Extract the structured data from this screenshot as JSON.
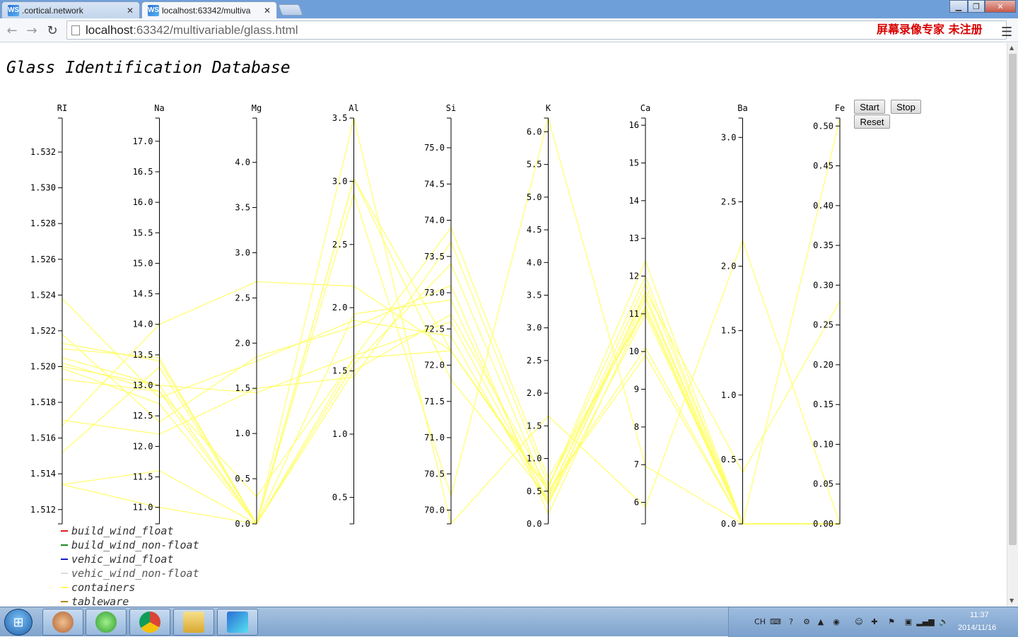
{
  "browser": {
    "tabs": [
      {
        "title": ".cortical.network",
        "active": false,
        "icon": "webstorm-icon"
      },
      {
        "title": "localhost:63342/multiva",
        "active": true,
        "icon": "webstorm-icon"
      }
    ],
    "url_host": "localhost",
    "url_rest": ":63342/multivariable/glass.html",
    "watermark": "屏幕录像专家 未注册"
  },
  "page": {
    "title": "Glass Identification Database",
    "buttons": {
      "start": "Start",
      "stop": "Stop",
      "reset": "Reset"
    },
    "legend": [
      {
        "label": "build_wind_float",
        "color": "#e41a1c"
      },
      {
        "label": "build_wind_non-float",
        "color": "#1a8a1a"
      },
      {
        "label": "vehic_wind_float",
        "color": "#1a1acc"
      },
      {
        "label": "vehic_wind_non-float",
        "color": "#dddddd"
      },
      {
        "label": "containers",
        "color": "#ffff55"
      },
      {
        "label": "tableware",
        "color": "#b8860b"
      }
    ]
  },
  "chart_data": {
    "type": "parallel-coordinates",
    "line_color": "#ffff66",
    "axes": [
      {
        "name": "RI",
        "min": 1.5112,
        "max": 1.5339,
        "ticks": [
          "1.512",
          "1.514",
          "1.516",
          "1.518",
          "1.520",
          "1.522",
          "1.524",
          "1.526",
          "1.528",
          "1.530",
          "1.532"
        ],
        "tick_values": [
          1.512,
          1.514,
          1.516,
          1.518,
          1.52,
          1.522,
          1.524,
          1.526,
          1.528,
          1.53,
          1.532
        ]
      },
      {
        "name": "Na",
        "min": 10.73,
        "max": 17.38,
        "ticks": [
          "11.0",
          "11.5",
          "12.0",
          "12.5",
          "13.0",
          "13.5",
          "14.0",
          "14.5",
          "15.0",
          "15.5",
          "16.0",
          "16.5",
          "17.0"
        ],
        "tick_values": [
          11.0,
          11.5,
          12.0,
          12.5,
          13.0,
          13.5,
          14.0,
          14.5,
          15.0,
          15.5,
          16.0,
          16.5,
          17.0
        ]
      },
      {
        "name": "Mg",
        "min": 0,
        "max": 4.49,
        "ticks": [
          "0.0",
          "0.5",
          "1.0",
          "1.5",
          "2.0",
          "2.5",
          "3.0",
          "3.5",
          "4.0"
        ],
        "tick_values": [
          0,
          0.5,
          1.0,
          1.5,
          2.0,
          2.5,
          3.0,
          3.5,
          4.0
        ]
      },
      {
        "name": "Al",
        "min": 0.29,
        "max": 3.5,
        "ticks": [
          "0.5",
          "1.0",
          "1.5",
          "2.0",
          "2.5",
          "3.0",
          "3.5"
        ],
        "tick_values": [
          0.5,
          1.0,
          1.5,
          2.0,
          2.5,
          3.0,
          3.5
        ]
      },
      {
        "name": "Si",
        "min": 69.81,
        "max": 75.41,
        "ticks": [
          "70.0",
          "70.5",
          "71.0",
          "71.5",
          "72.0",
          "72.5",
          "73.0",
          "73.5",
          "74.0",
          "74.5",
          "75.0"
        ],
        "tick_values": [
          70.0,
          70.5,
          71.0,
          71.5,
          72.0,
          72.5,
          73.0,
          73.5,
          74.0,
          74.5,
          75.0
        ]
      },
      {
        "name": "K",
        "min": 0,
        "max": 6.21,
        "ticks": [
          "0.0",
          "0.5",
          "1.0",
          "1.5",
          "2.0",
          "2.5",
          "3.0",
          "3.5",
          "4.0",
          "4.5",
          "5.0",
          "5.5",
          "6.0"
        ],
        "tick_values": [
          0,
          0.5,
          1.0,
          1.5,
          2.0,
          2.5,
          3.0,
          3.5,
          4.0,
          4.5,
          5.0,
          5.5,
          6.0
        ]
      },
      {
        "name": "Ca",
        "min": 5.43,
        "max": 16.19,
        "ticks": [
          "6",
          "7",
          "8",
          "9",
          "10",
          "11",
          "12",
          "13",
          "14",
          "15",
          "16"
        ],
        "tick_values": [
          6,
          7,
          8,
          9,
          10,
          11,
          12,
          13,
          14,
          15,
          16
        ]
      },
      {
        "name": "Ba",
        "min": 0,
        "max": 3.15,
        "ticks": [
          "0.0",
          "0.5",
          "1.0",
          "1.5",
          "2.0",
          "2.5",
          "3.0"
        ],
        "tick_values": [
          0,
          0.5,
          1.0,
          1.5,
          2.0,
          2.5,
          3.0
        ]
      },
      {
        "name": "Fe",
        "min": 0,
        "max": 0.51,
        "ticks": [
          "0.00",
          "0.05",
          "0.10",
          "0.15",
          "0.20",
          "0.25",
          "0.30",
          "0.35",
          "0.40",
          "0.45",
          "0.50"
        ],
        "tick_values": [
          0,
          0.05,
          0.1,
          0.15,
          0.2,
          0.25,
          0.3,
          0.35,
          0.4,
          0.45,
          0.5
        ]
      }
    ],
    "records": [
      [
        1.5213,
        13.4,
        0,
        3.02,
        72.2,
        0.5,
        9.9,
        0,
        0
      ],
      [
        1.5193,
        12.9,
        0,
        1.55,
        73.4,
        0.45,
        11.5,
        0,
        0
      ],
      [
        1.517,
        12.2,
        1.5,
        1.45,
        73.7,
        0.6,
        11.2,
        0,
        0
      ],
      [
        1.5205,
        13.0,
        1.45,
        1.62,
        72.6,
        0.35,
        11.4,
        0,
        0
      ],
      [
        1.5238,
        12.8,
        1.8,
        1.9,
        72.4,
        0.3,
        11.0,
        0,
        0
      ],
      [
        1.5218,
        12.4,
        1.85,
        1.85,
        73.1,
        0.15,
        11.2,
        0,
        0
      ],
      [
        1.5167,
        14.0,
        2.68,
        2.17,
        72.2,
        0.5,
        10.1,
        0,
        0
      ],
      [
        1.5152,
        13.3,
        0,
        3.02,
        71.8,
        0.4,
        11.8,
        0,
        0
      ],
      [
        1.5134,
        11.6,
        0,
        2.9,
        70.2,
        6.21,
        6.96,
        0,
        0.51
      ],
      [
        1.5134,
        11.0,
        0,
        3.5,
        69.81,
        1.65,
        5.87,
        2.2,
        0
      ],
      [
        1.52,
        13.0,
        0,
        1.6,
        72.2,
        0.55,
        12.4,
        0,
        0
      ],
      [
        1.5202,
        12.9,
        0.3,
        1.6,
        73.9,
        0.7,
        11.1,
        0,
        0
      ],
      [
        1.5199,
        12.7,
        0,
        1.95,
        72.9,
        0.3,
        11.6,
        0.4,
        0.28
      ],
      [
        1.521,
        13.45,
        0,
        1.5,
        72.7,
        0.55,
        12.0,
        0,
        0
      ]
    ]
  }
}
